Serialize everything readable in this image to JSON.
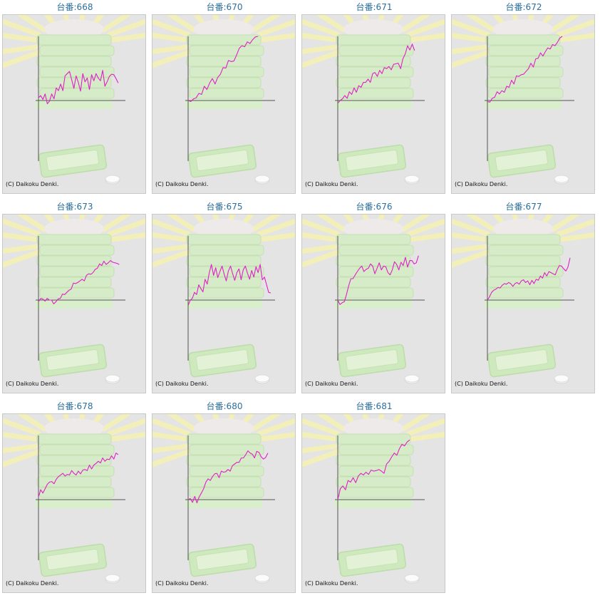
{
  "page": {
    "background": "#ffffff"
  },
  "colors": {
    "title": "#2a6f9e",
    "line": "#e020c8",
    "axis": "#555555",
    "panel_bg": "#e4e4e4"
  },
  "background_art": {
    "icon": "glowing-stacked-trays-icon",
    "tray_icon": "tray-icon",
    "medal_icon": "medal-icon"
  },
  "charts": [
    {
      "title": "台番:668",
      "copyright": "(C) Daikoku Denki.",
      "chart_data": {
        "type": "line",
        "series": [
          {
            "values": [
              5,
              9,
              2,
              12,
              -6,
              -1,
              12,
              3,
              23,
              18,
              30,
              18,
              45,
              49,
              53,
              38,
              22,
              45,
              33,
              17,
              49,
              34,
              41,
              20,
              47,
              36,
              49,
              41,
              36,
              55,
              26,
              34,
              44,
              48,
              47,
              40,
              32
            ]
          }
        ]
      }
    },
    {
      "title": "台番:670",
      "copyright": "(C) Daikoku Denki.",
      "chart_data": {
        "type": "line",
        "series": [
          {
            "values": [
              0,
              -2,
              3,
              5,
              13,
              11,
              26,
              20,
              32,
              40,
              30,
              42,
              48,
              60,
              59,
              73,
              71,
              72,
              83,
              95,
              100,
              98,
              107,
              104,
              111,
              116,
              117
            ]
          }
        ]
      }
    },
    {
      "title": "台番:671",
      "copyright": "(C) Daikoku Denki.",
      "chart_data": {
        "type": "line",
        "series": [
          {
            "values": [
              -5,
              0,
              3,
              9,
              4,
              16,
              11,
              23,
              15,
              27,
              24,
              33,
              33,
              39,
              33,
              49,
              51,
              44,
              55,
              49,
              60,
              58,
              62,
              56,
              66,
              67,
              68,
              58,
              76,
              85,
              100,
              92,
              103,
              91
            ]
          }
        ]
      }
    },
    {
      "title": "台番:672",
      "copyright": "(C) Daikoku Denki.",
      "chart_data": {
        "type": "line",
        "series": [
          {
            "values": [
              -2,
              -3,
              4,
              6,
              16,
              12,
              18,
              15,
              26,
              24,
              37,
              30,
              45,
              44,
              47,
              48,
              53,
              58,
              68,
              61,
              76,
              77,
              87,
              81,
              89,
              96,
              94,
              102,
              100,
              106,
              114,
              117
            ]
          }
        ]
      }
    },
    {
      "title": "台番:673",
      "copyright": "(C) Daikoku Denki.",
      "chart_data": {
        "type": "line",
        "series": [
          {
            "values": [
              -3,
              3,
              2,
              -2,
              3,
              0,
              0,
              -7,
              -3,
              2,
              3,
              11,
              10,
              14,
              18,
              20,
              31,
              30,
              32,
              35,
              38,
              35,
              45,
              48,
              47,
              50,
              56,
              58,
              66,
              63,
              71,
              65,
              68,
              72,
              69,
              68,
              67,
              65
            ]
          }
        ]
      }
    },
    {
      "title": "台番:675",
      "copyright": "(C) Daikoku Denki.",
      "chart_data": {
        "type": "line",
        "series": [
          {
            "values": [
              -10,
              0,
              3,
              14,
              10,
              28,
              21,
              15,
              38,
              29,
              50,
              65,
              45,
              59,
              41,
              52,
              62,
              47,
              35,
              53,
              62,
              48,
              36,
              50,
              57,
              37,
              55,
              62,
              49,
              38,
              54,
              42,
              61,
              50,
              65,
              37,
              42,
              28,
              14,
              13
            ]
          }
        ]
      }
    },
    {
      "title": "台番:676",
      "copyright": "(C) Daikoku Denki.",
      "chart_data": {
        "type": "line",
        "series": [
          {
            "values": [
              0,
              -8,
              -5,
              -3,
              10,
              26,
              39,
              39,
              46,
              52,
              58,
              62,
              52,
              56,
              58,
              66,
              62,
              48,
              58,
              68,
              55,
              62,
              61,
              50,
              46,
              55,
              70,
              65,
              55,
              69,
              63,
              78,
              60,
              72,
              72,
              66,
              68,
              81
            ]
          }
        ]
      }
    },
    {
      "title": "台番:677",
      "copyright": "(C) Daikoku Denki.",
      "chart_data": {
        "type": "line",
        "series": [
          {
            "values": [
              0,
              6,
              14,
              18,
              20,
              23,
              22,
              27,
              30,
              29,
              32,
              30,
              25,
              30,
              32,
              29,
              35,
              37,
              32,
              35,
              28,
              36,
              30,
              38,
              36,
              44,
              40,
              50,
              44,
              52,
              50,
              48,
              46,
              56,
              63,
              62,
              57,
              53,
              60,
              77
            ]
          }
        ]
      }
    },
    {
      "title": "台番:678",
      "copyright": "(C) Daikoku Denki.",
      "chart_data": {
        "type": "line",
        "series": [
          {
            "values": [
              5,
              18,
              12,
              20,
              28,
              32,
              33,
              29,
              37,
              42,
              45,
              48,
              43,
              46,
              45,
              53,
              48,
              45,
              52,
              47,
              54,
              55,
              53,
              63,
              56,
              63,
              66,
              70,
              67,
              76,
              70,
              74,
              73,
              80,
              74,
              85,
              82
            ]
          }
        ]
      }
    },
    {
      "title": "台番:680",
      "copyright": "(C) Daikoku Denki.",
      "chart_data": {
        "type": "line",
        "series": [
          {
            "values": [
              0,
              2,
              -5,
              6,
              -6,
              5,
              12,
              20,
              32,
              38,
              35,
              42,
              47,
              48,
              40,
              52,
              50,
              51,
              55,
              52,
              62,
              65,
              68,
              68,
              76,
              76,
              82,
              89,
              85,
              83,
              76,
              88,
              86,
              78,
              74,
              77,
              85
            ]
          }
        ]
      }
    },
    {
      "title": "台番:681",
      "copyright": "(C) Daikoku Denki.",
      "chart_data": {
        "type": "line",
        "series": [
          {
            "values": [
              0,
              20,
              25,
              18,
              35,
              32,
              40,
              31,
              43,
              48,
              45,
              50,
              46,
              54,
              52,
              53,
              55,
              52,
              48,
              65,
              70,
              78,
              85,
              81,
              93,
              101,
              98,
              105,
              109
            ]
          }
        ]
      }
    }
  ]
}
